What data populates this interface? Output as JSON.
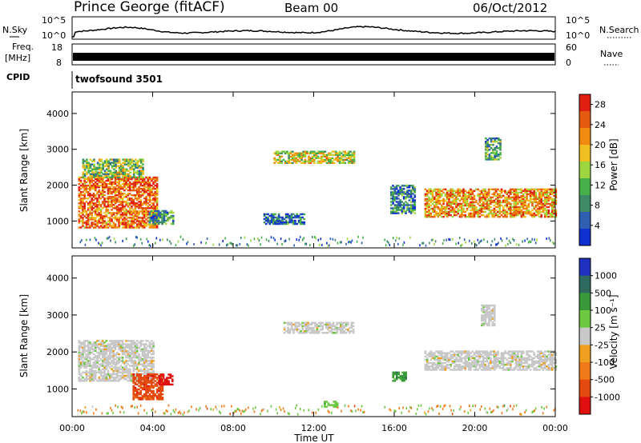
{
  "header": {
    "station": "Prince George (fitACF)",
    "beam": "Beam 00",
    "date": "06/Oct/2012"
  },
  "panels": {
    "nsky": {
      "left_label": "N.Sky",
      "right_label": "N.Search",
      "yticks_left": [
        "10^5",
        "10^0"
      ],
      "yticks_right": [
        "10^5",
        "10^0"
      ]
    },
    "freq": {
      "left_label_top": "Freq.",
      "left_label_bottom": "[MHz]",
      "right_label": "Nave",
      "yticks_left": [
        "18",
        "8"
      ],
      "yticks_right": [
        "60",
        "0"
      ]
    },
    "cpid": {
      "label": "CPID",
      "program": "twofsound 3501"
    }
  },
  "colors": {
    "background": "#ffffff",
    "axis": "#000000",
    "power_scale": [
      "#1030d0",
      "#2f5fb0",
      "#3f8a66",
      "#48b04a",
      "#9ed640",
      "#f0c020",
      "#f08a10",
      "#e65a10",
      "#e02010"
    ],
    "velocity_scale": [
      "#e01010",
      "#e24a10",
      "#f07a1a",
      "#f0a020",
      "#c8c8c8",
      "#6cc840",
      "#3a9a3a",
      "#2e6a60",
      "#2030c0"
    ]
  },
  "chart_data": [
    {
      "type": "heatmap",
      "title": "",
      "ylabel": "Slant Range [km]",
      "xlabel": "",
      "y_ticks": [
        "1000",
        "2000",
        "3000",
        "4000"
      ],
      "ylim": [
        250,
        4600
      ],
      "x_ticks": [
        "00:00",
        "04:00",
        "08:00",
        "12:00",
        "16:00",
        "20:00",
        "00:00"
      ],
      "xlim_hours": [
        0,
        24
      ],
      "colorbar": {
        "label": "Power [dB]",
        "ticks": [
          "4",
          "8",
          "12",
          "16",
          "20",
          "24",
          "28"
        ],
        "range": [
          0,
          30
        ]
      },
      "regions": [
        {
          "t0": 0.3,
          "t1": 4.2,
          "r0": 800,
          "r1": 2200,
          "level": 0.8
        },
        {
          "t0": 0.5,
          "t1": 3.5,
          "r0": 2200,
          "r1": 2700,
          "level": 0.45
        },
        {
          "t0": 3.8,
          "t1": 5.0,
          "r0": 900,
          "r1": 1300,
          "level": 0.3
        },
        {
          "t0": 10.0,
          "t1": 14.0,
          "r0": 2600,
          "r1": 2950,
          "level": 0.55
        },
        {
          "t0": 9.5,
          "t1": 11.5,
          "r0": 900,
          "r1": 1200,
          "level": 0.2
        },
        {
          "t0": 15.8,
          "t1": 17.0,
          "r0": 1200,
          "r1": 2000,
          "level": 0.25
        },
        {
          "t0": 17.5,
          "t1": 24.0,
          "r0": 1100,
          "r1": 1900,
          "level": 0.7
        },
        {
          "t0": 20.5,
          "t1": 21.3,
          "r0": 2700,
          "r1": 3300,
          "level": 0.35
        }
      ]
    },
    {
      "type": "heatmap",
      "title": "",
      "ylabel": "Slant Range [km]",
      "xlabel": "Time UT",
      "y_ticks": [
        "1000",
        "2000",
        "3000",
        "4000"
      ],
      "ylim": [
        250,
        4600
      ],
      "x_ticks": [
        "00:00",
        "04:00",
        "08:00",
        "12:00",
        "16:00",
        "20:00",
        "00:00"
      ],
      "xlim_hours": [
        0,
        24
      ],
      "colorbar": {
        "label": "Velocity [m s⁻¹]",
        "ticks": [
          "1000",
          "500",
          "100",
          "25",
          "-25",
          "-100",
          "-500",
          "-1000"
        ],
        "range": [
          -1000,
          1000
        ]
      },
      "regions": [
        {
          "t0": 0.3,
          "t1": 4.0,
          "r0": 1200,
          "r1": 2300,
          "value": 0
        },
        {
          "t0": 3.0,
          "t1": 4.5,
          "r0": 700,
          "r1": 1400,
          "value": -450
        },
        {
          "t0": 4.3,
          "t1": 5.0,
          "r0": 1100,
          "r1": 1400,
          "value": -900
        },
        {
          "t0": 10.5,
          "t1": 14.0,
          "r0": 2500,
          "r1": 2800,
          "value": 0
        },
        {
          "t0": 12.5,
          "t1": 13.2,
          "r0": 500,
          "r1": 650,
          "value": 200
        },
        {
          "t0": 15.9,
          "t1": 16.6,
          "r0": 1200,
          "r1": 1450,
          "value": 300
        },
        {
          "t0": 17.5,
          "t1": 24.0,
          "r0": 1500,
          "r1": 2000,
          "value": 0
        },
        {
          "t0": 20.3,
          "t1": 21.0,
          "r0": 2700,
          "r1": 3250,
          "value": 0
        }
      ]
    }
  ]
}
